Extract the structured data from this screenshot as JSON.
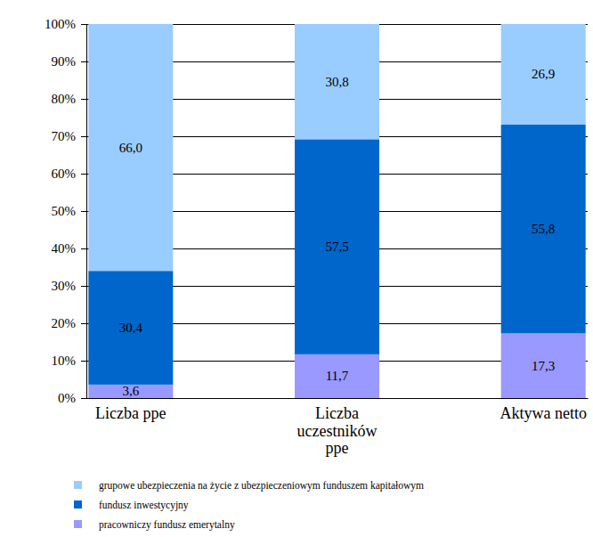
{
  "chart_data": {
    "type": "bar",
    "stacked": true,
    "data_labels": true,
    "grid": true,
    "legend": "bottom",
    "categories": [
      "Liczba ppe",
      "Liczba uczestników ppe",
      "Aktywa netto"
    ],
    "ylim": [
      0,
      100
    ],
    "yticks": [
      {
        "value": 0,
        "label": "0%"
      },
      {
        "value": 10,
        "label": "10%"
      },
      {
        "value": 20,
        "label": "20%"
      },
      {
        "value": 30,
        "label": "30%"
      },
      {
        "value": 40,
        "label": "40%"
      },
      {
        "value": 50,
        "label": "50%"
      },
      {
        "value": 60,
        "label": "60%"
      },
      {
        "value": 70,
        "label": "70%"
      },
      {
        "value": 80,
        "label": "80%"
      },
      {
        "value": 90,
        "label": "90%"
      },
      {
        "value": 100,
        "label": "100%"
      }
    ],
    "series": [
      {
        "name": "pracowniczy fundusz emerytalny",
        "color": "#9999ff",
        "values": [
          3.6,
          11.7,
          17.3
        ],
        "value_labels": [
          "3,6",
          "11,7",
          "17,3"
        ]
      },
      {
        "name": "fundusz inwestycyjny",
        "color": "#0066cc",
        "values": [
          30.4,
          57.5,
          55.8
        ],
        "value_labels": [
          "30,4",
          "57,5",
          "55,8"
        ]
      },
      {
        "name": "grupowe ubezpieczenia na życie z ubezpieczeniowym funduszem kapitałowym",
        "color": "#99ccff",
        "values": [
          66.0,
          30.8,
          26.9
        ],
        "value_labels": [
          "66,0",
          "30,8",
          "26,9"
        ]
      }
    ]
  }
}
